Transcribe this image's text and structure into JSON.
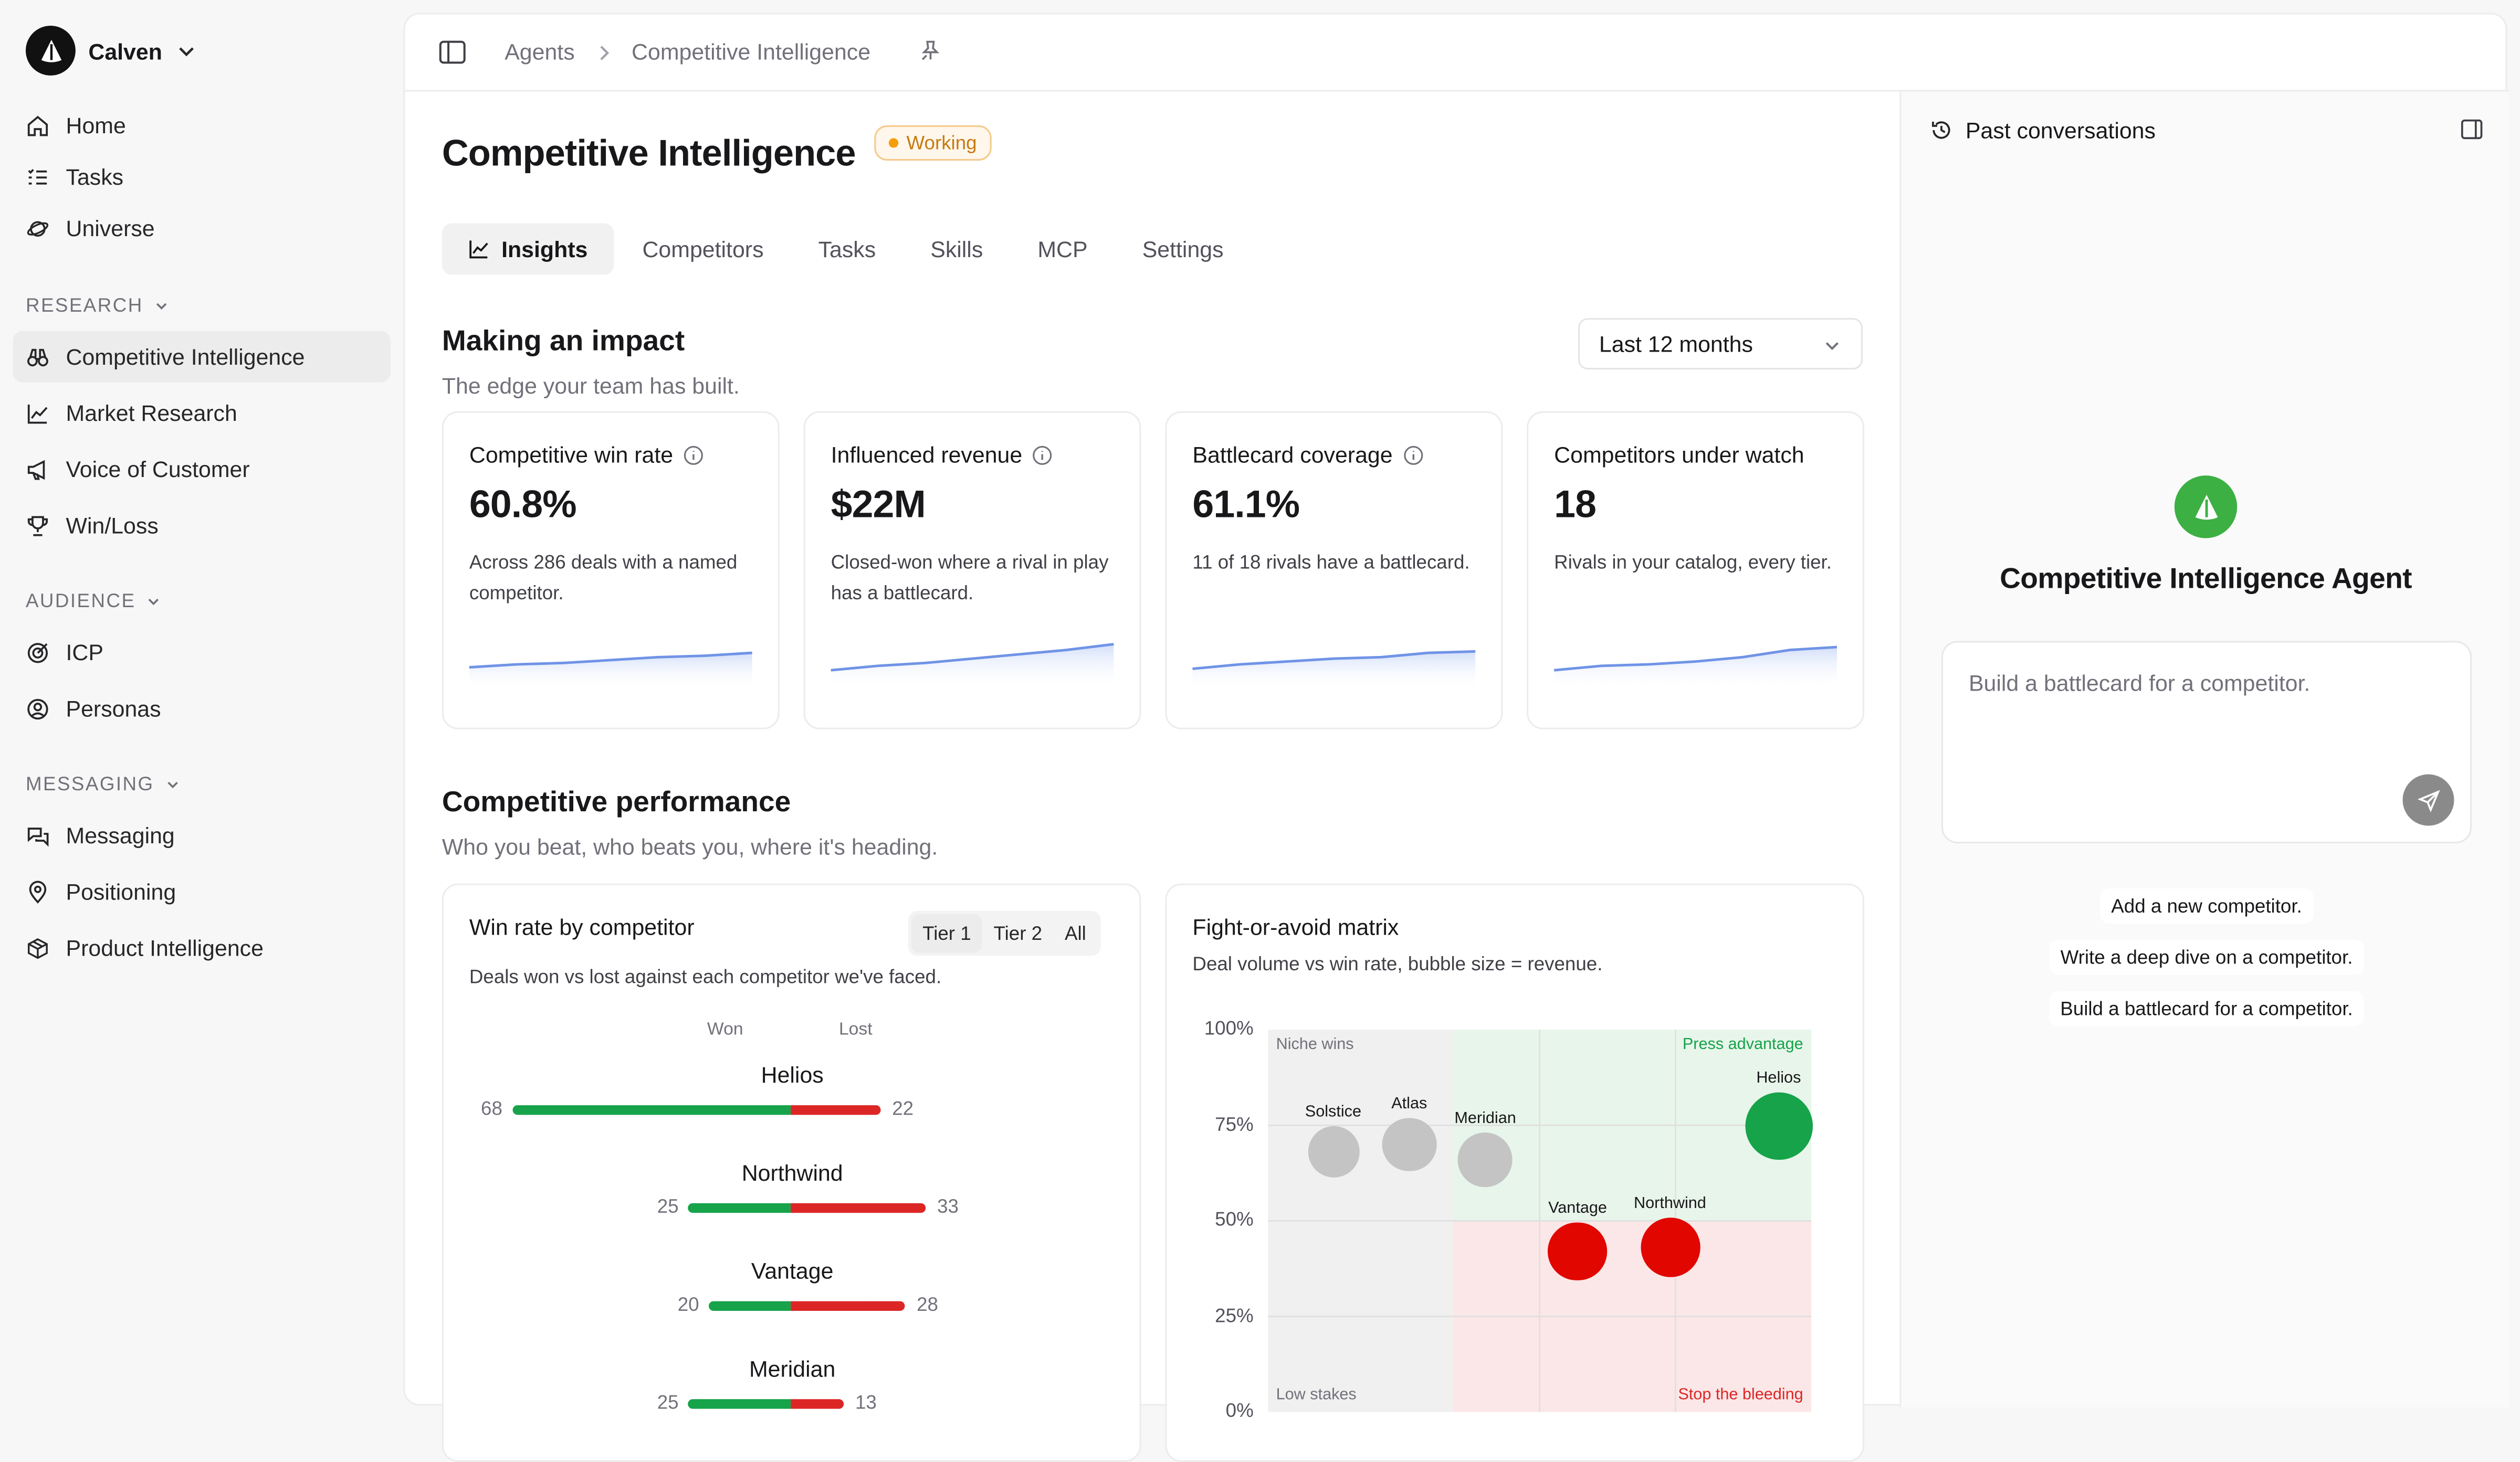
{
  "workspace": {
    "name": "Calven"
  },
  "nav": {
    "top": [
      {
        "label": "Home",
        "icon": "home-icon"
      },
      {
        "label": "Tasks",
        "icon": "tasks-icon"
      },
      {
        "label": "Universe",
        "icon": "universe-icon"
      }
    ],
    "sections": [
      {
        "label": "RESEARCH",
        "items": [
          "Competitive Intelligence",
          "Market Research",
          "Voice of Customer",
          "Win/Loss"
        ]
      },
      {
        "label": "AUDIENCE",
        "items": [
          "ICP",
          "Personas"
        ]
      },
      {
        "label": "MESSAGING",
        "items": [
          "Messaging",
          "Positioning",
          "Product Intelligence"
        ]
      }
    ]
  },
  "breadcrumb": {
    "parent": "Agents",
    "current": "Competitive Intelligence"
  },
  "page": {
    "title": "Competitive Intelligence",
    "status": "Working"
  },
  "tabs": [
    "Insights",
    "Competitors",
    "Tasks",
    "Skills",
    "MCP",
    "Settings"
  ],
  "impact": {
    "title": "Making an impact",
    "subtitle": "The edge your team has built.",
    "period": "Last 12 months",
    "kpis": [
      {
        "label": "Competitive win rate",
        "value": "60.8%",
        "desc": "Across 286 deals with a named competitor.",
        "info": true,
        "trend": [
          0.2,
          0.3,
          0.35,
          0.45,
          0.55,
          0.6,
          0.7
        ]
      },
      {
        "label": "Influenced revenue",
        "value": "$22M",
        "desc": "Closed-won where a rival in play has a battlecard.",
        "info": true,
        "trend": [
          0.1,
          0.25,
          0.35,
          0.5,
          0.65,
          0.8,
          1.0
        ]
      },
      {
        "label": "Battlecard coverage",
        "value": "61.1%",
        "desc": "11 of 18 rivals have a battlecard.",
        "info": true,
        "trend": [
          0.15,
          0.3,
          0.4,
          0.5,
          0.55,
          0.7,
          0.75
        ]
      },
      {
        "label": "Competitors under watch",
        "value": "18",
        "desc": "Rivals in your catalog, every tier.",
        "info": false,
        "trend": [
          0.1,
          0.25,
          0.3,
          0.4,
          0.55,
          0.8,
          0.9
        ]
      }
    ]
  },
  "performance": {
    "title": "Competitive performance",
    "subtitle": "Who you beat, who beats you, where it's heading."
  },
  "winrate": {
    "title": "Win rate by competitor",
    "subtitle": "Deals won vs lost against each competitor we've faced.",
    "filters": [
      "Tier 1",
      "Tier 2",
      "All"
    ],
    "active_filter": "Tier 1",
    "won_label": "Won",
    "lost_label": "Lost",
    "colors": {
      "won": "#16a34a",
      "lost": "#dc2626"
    },
    "chart_data": {
      "type": "bar",
      "categories": [
        "Helios",
        "Northwind",
        "Vantage",
        "Meridian"
      ],
      "series": [
        {
          "name": "Won",
          "values": [
            68,
            25,
            20,
            25
          ]
        },
        {
          "name": "Lost",
          "values": [
            22,
            33,
            28,
            13
          ]
        }
      ]
    }
  },
  "matrix": {
    "title": "Fight-or-avoid matrix",
    "subtitle": "Deal volume vs win rate, bubble size = revenue.",
    "quadrants": {
      "top_left": "Niche wins",
      "top_right": "Press advantage",
      "bottom_left": "Low stakes",
      "bottom_right": "Stop the bleeding"
    },
    "chart_data": {
      "type": "scatter",
      "ylim": [
        0,
        100
      ],
      "yticks": [
        "100%",
        "75%",
        "50%",
        "25%",
        "0%"
      ],
      "points": [
        {
          "name": "Solstice",
          "x": 0.12,
          "y": 68,
          "size": 0.55,
          "color": "#c4c4c4"
        },
        {
          "name": "Atlas",
          "x": 0.26,
          "y": 70,
          "size": 0.62,
          "color": "#c4c4c4"
        },
        {
          "name": "Meridian",
          "x": 0.4,
          "y": 66,
          "size": 0.66,
          "color": "#c4c4c4"
        },
        {
          "name": "Helios",
          "x": 0.94,
          "y": 75,
          "size": 1.0,
          "color": "#16a34a"
        },
        {
          "name": "Vantage",
          "x": 0.57,
          "y": 42,
          "size": 0.75,
          "color": "#e10600"
        },
        {
          "name": "Northwind",
          "x": 0.74,
          "y": 43,
          "size": 0.78,
          "color": "#e10600"
        }
      ]
    }
  },
  "agent_panel": {
    "past_label": "Past conversations",
    "agent_name": "Competitive Intelligence Agent",
    "placeholder": "Build a battlecard for a competitor.",
    "suggestions": [
      "Add a new competitor.",
      "Write a deep dive on a competitor.",
      "Build a battlecard for a competitor."
    ],
    "accent": "#3cb043"
  }
}
